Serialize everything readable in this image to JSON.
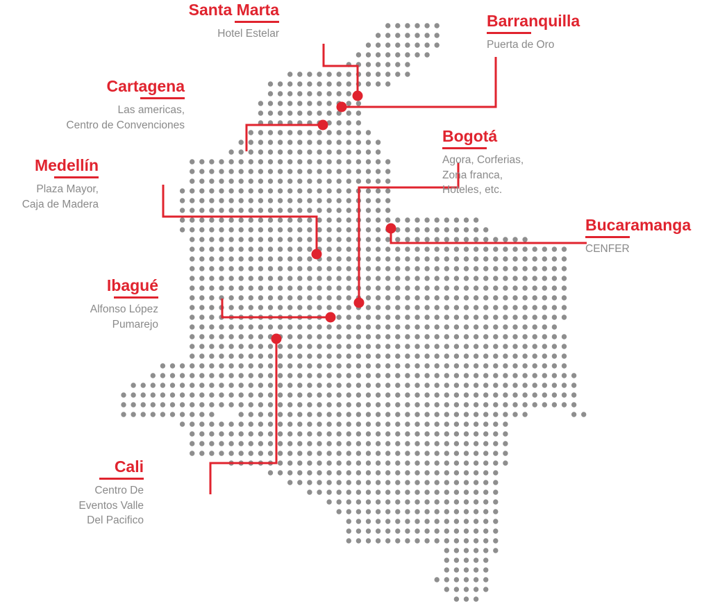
{
  "colors": {
    "accent": "#e0232e",
    "dots": "#8e8e8e",
    "venue_text": "#8a8a8a"
  },
  "cities": [
    {
      "id": "santa-marta",
      "name": "Santa Marta",
      "venues": [
        "Hotel Estelar"
      ]
    },
    {
      "id": "barranquilla",
      "name": "Barranquilla",
      "venues": [
        "Puerta de Oro"
      ]
    },
    {
      "id": "cartagena",
      "name": "Cartagena",
      "venues": [
        "Las americas,",
        "Centro de Convenciones"
      ]
    },
    {
      "id": "bogota",
      "name": "Bogotá",
      "venues": [
        "Agora, Corferias,",
        "Zona franca,",
        "Hoteles, etc."
      ]
    },
    {
      "id": "medellin",
      "name": "Medellín",
      "venues": [
        "Plaza Mayor,",
        "Caja de Madera"
      ]
    },
    {
      "id": "bucaramanga",
      "name": "Bucaramanga",
      "venues": [
        "CENFER"
      ]
    },
    {
      "id": "ibague",
      "name": "Ibagué",
      "venues": [
        "Alfonso López",
        "Pumarejo"
      ]
    },
    {
      "id": "cali",
      "name": "Cali",
      "venues": [
        "Centro De",
        "Eventos Valle",
        "Del Pacifico"
      ]
    }
  ]
}
